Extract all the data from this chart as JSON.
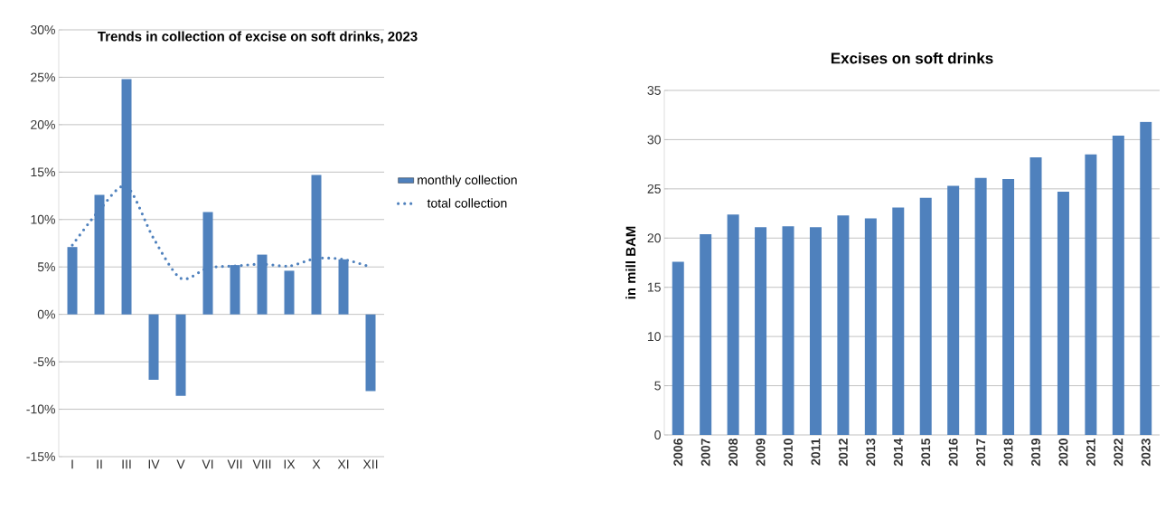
{
  "chart_data": [
    {
      "type": "bar",
      "title": "Trends in collection of excise on soft drinks, 2023",
      "categories": [
        "I",
        "II",
        "III",
        "IV",
        "V",
        "VI",
        "VII",
        "VIII",
        "IX",
        "X",
        "XI",
        "XII"
      ],
      "series": [
        {
          "name": "monthly collection",
          "type": "bar",
          "color": "#4f81bd",
          "values": [
            7.1,
            12.6,
            24.8,
            -6.9,
            -8.6,
            10.8,
            5.2,
            6.3,
            4.6,
            14.7,
            5.8,
            -8.1
          ]
        },
        {
          "name": "total collection",
          "type": "line",
          "line_style": "dotted",
          "color": "#4f81bd",
          "values": [
            7.3,
            11.0,
            13.5,
            8.0,
            3.8,
            4.9,
            5.1,
            5.3,
            5.1,
            5.9,
            5.8,
            5.0
          ]
        }
      ],
      "ylim": [
        -15,
        30
      ],
      "yticks": [
        {
          "value": -15,
          "label": "-15%"
        },
        {
          "value": -10,
          "label": "-10%"
        },
        {
          "value": -5,
          "label": "-5%"
        },
        {
          "value": 0,
          "label": "0%"
        },
        {
          "value": 5,
          "label": "5%"
        },
        {
          "value": 10,
          "label": "10%"
        },
        {
          "value": 15,
          "label": "15%"
        },
        {
          "value": 20,
          "label": "20%"
        },
        {
          "value": 25,
          "label": "25%"
        },
        {
          "value": 30,
          "label": "30%"
        }
      ],
      "grid": "y",
      "legend": "right"
    },
    {
      "type": "bar",
      "title": "Excises on soft drinks",
      "ylabel": "in mill BAM",
      "categories": [
        "2006",
        "2007",
        "2008",
        "2009",
        "2010",
        "2011",
        "2012",
        "2013",
        "2014",
        "2015",
        "2016",
        "2017",
        "2018",
        "2019",
        "2020",
        "2021",
        "2022",
        "2023"
      ],
      "values": [
        17.6,
        20.4,
        22.4,
        21.1,
        21.2,
        21.1,
        22.3,
        22.0,
        23.1,
        24.1,
        25.3,
        26.1,
        26.0,
        28.2,
        24.7,
        28.5,
        30.4,
        31.8
      ],
      "color": "#4f81bd",
      "ylim": [
        0,
        35
      ],
      "yticks": [
        0,
        5,
        10,
        15,
        20,
        25,
        30,
        35
      ],
      "grid": "y"
    }
  ]
}
